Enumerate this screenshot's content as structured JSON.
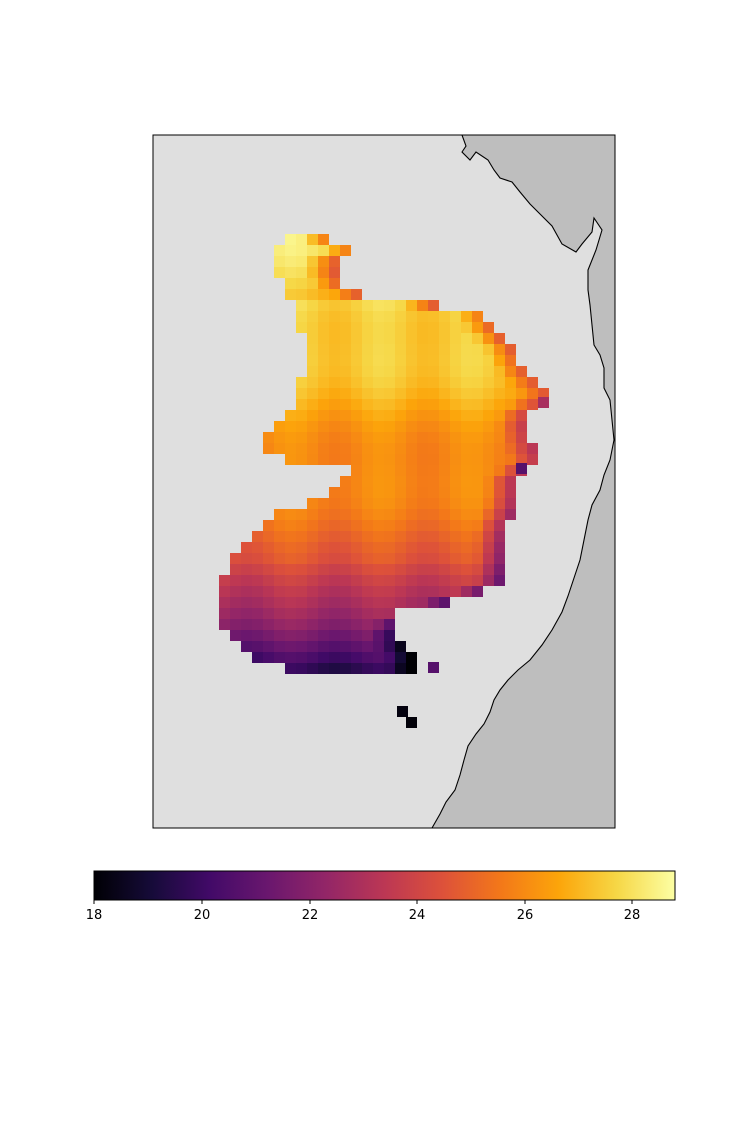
{
  "map": {
    "background_color": "#dfdfdf",
    "land_color": "#bebebe",
    "coastline_color": "#000000",
    "colormap": "inferno"
  },
  "colorbar": {
    "min": 18,
    "max": 28.8,
    "ticks": [
      "18",
      "20",
      "22",
      "24",
      "26",
      "28"
    ]
  }
}
